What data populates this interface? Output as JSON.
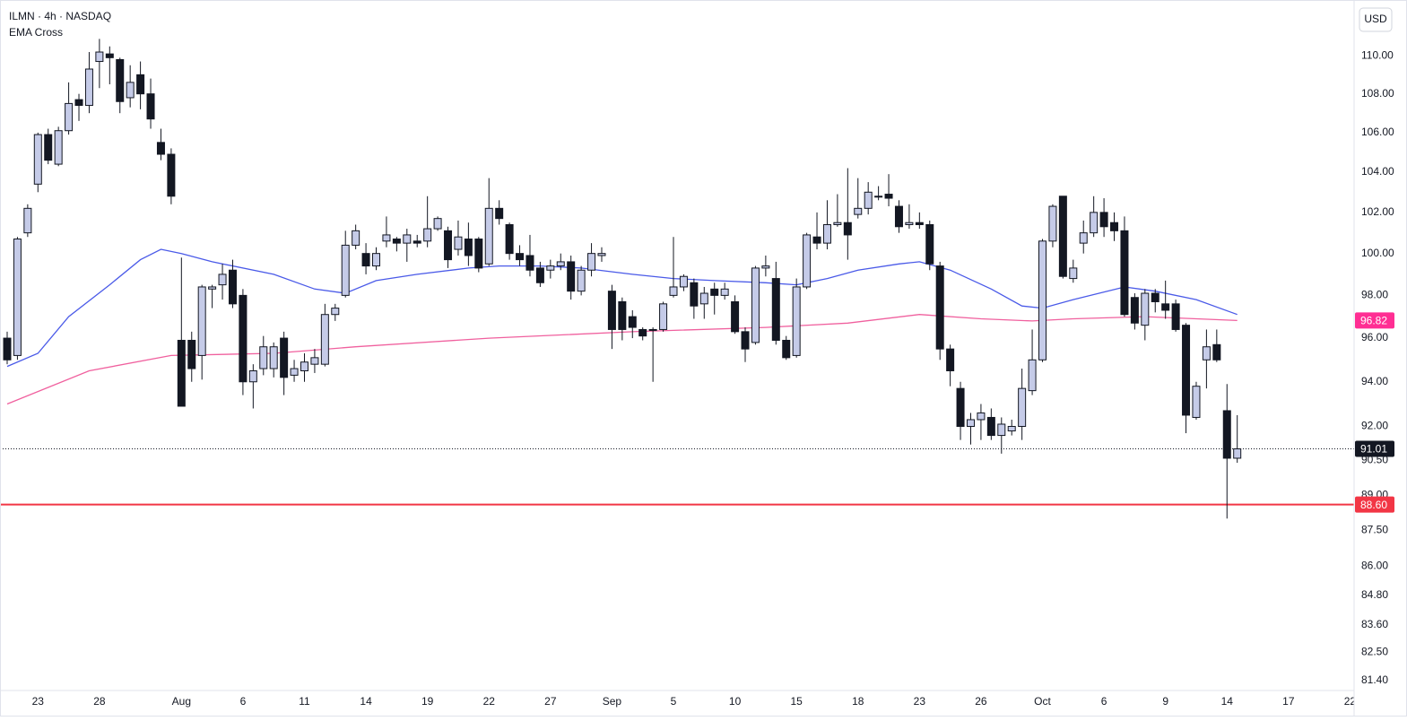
{
  "chart_data": {
    "type": "candlestick",
    "title": "ILMN · 4h · NASDAQ",
    "subtitle": "EMA Cross",
    "currency": "USD",
    "log_scale": true,
    "ylim": [
      81.0,
      113.0
    ],
    "xlim": [
      -0.7,
      131.4
    ],
    "yticks": [
      {
        "value": 110,
        "label": "110.00"
      },
      {
        "value": 108,
        "label": "108.00"
      },
      {
        "value": 106,
        "label": "106.00"
      },
      {
        "value": 104,
        "label": "104.00"
      },
      {
        "value": 102,
        "label": "102.00"
      },
      {
        "value": 100,
        "label": "100.00"
      },
      {
        "value": 98,
        "label": "98.00"
      },
      {
        "value": 96,
        "label": "96.00"
      },
      {
        "value": 94,
        "label": "94.00"
      },
      {
        "value": 92,
        "label": "92.00"
      },
      {
        "value": 90.5,
        "label": "90.50"
      },
      {
        "value": 89,
        "label": "89.00"
      },
      {
        "value": 87.5,
        "label": "87.50"
      },
      {
        "value": 86,
        "label": "86.00"
      },
      {
        "value": 84.8,
        "label": "84.80"
      },
      {
        "value": 83.6,
        "label": "83.60"
      },
      {
        "value": 82.5,
        "label": "82.50"
      },
      {
        "value": 81.4,
        "label": "81.40"
      }
    ],
    "xticks": [
      {
        "value": 3,
        "label": "23"
      },
      {
        "value": 9,
        "label": "28"
      },
      {
        "value": 17,
        "label": "Aug"
      },
      {
        "value": 23,
        "label": "6"
      },
      {
        "value": 29,
        "label": "11"
      },
      {
        "value": 35,
        "label": "14"
      },
      {
        "value": 41,
        "label": "19"
      },
      {
        "value": 47,
        "label": "22"
      },
      {
        "value": 53,
        "label": "27"
      },
      {
        "value": 59,
        "label": "Sep"
      },
      {
        "value": 65,
        "label": "5"
      },
      {
        "value": 71,
        "label": "10"
      },
      {
        "value": 77,
        "label": "15"
      },
      {
        "value": 83,
        "label": "18"
      },
      {
        "value": 89,
        "label": "23"
      },
      {
        "value": 95,
        "label": "26"
      },
      {
        "value": 101,
        "label": "Oct"
      },
      {
        "value": 107,
        "label": "6"
      },
      {
        "value": 113,
        "label": "9"
      },
      {
        "value": 119,
        "label": "14"
      },
      {
        "value": 125,
        "label": "17"
      },
      {
        "value": 131,
        "label": "22"
      }
    ],
    "up_color": "#c5cbe8",
    "down_color": "#131722",
    "open": [
      96.0,
      95.2,
      101.0,
      103.4,
      105.9,
      104.4,
      106.1,
      107.7,
      107.4,
      109.7,
      110.1,
      109.8,
      107.8,
      109.0,
      108.0,
      105.5,
      104.9,
      95.9,
      95.9,
      95.2,
      98.3,
      98.5,
      99.2,
      98.0,
      94.0,
      94.6,
      94.6,
      96.0,
      94.3,
      94.5,
      94.8,
      94.8,
      97.1,
      98.0,
      100.4,
      100.0,
      99.4,
      100.6,
      100.7,
      100.5,
      100.6,
      100.6,
      101.2,
      101.1,
      100.2,
      100.7,
      100.7,
      99.5,
      102.2,
      101.4,
      100.0,
      99.9,
      99.3,
      99.2,
      99.4,
      99.6,
      98.2,
      99.2,
      99.9,
      98.2,
      97.7,
      97.0,
      96.4,
      96.4,
      96.4,
      98.0,
      98.4,
      98.6,
      97.6,
      98.3,
      98.0,
      97.7,
      96.3,
      95.8,
      99.3,
      98.8,
      95.9,
      95.2,
      98.4,
      100.8,
      100.5,
      101.4,
      101.5,
      101.9,
      102.2,
      102.8,
      102.9,
      102.3,
      101.4,
      101.5,
      101.4,
      99.4,
      95.5,
      93.7,
      92.0,
      92.3,
      92.4,
      91.6,
      91.8,
      92.0,
      93.6,
      95.0,
      100.6,
      102.8,
      98.8,
      100.5,
      101.0,
      102.0,
      101.5,
      101.1,
      97.9,
      96.6,
      98.1,
      97.6,
      97.6,
      96.6,
      92.4,
      95.0,
      95.7,
      92.7,
      90.6
    ],
    "high": [
      96.3,
      100.8,
      102.4,
      106.0,
      106.2,
      106.3,
      108.6,
      108.0,
      110.2,
      110.9,
      110.5,
      109.9,
      109.5,
      109.7,
      108.8,
      106.2,
      105.2,
      99.8,
      96.3,
      98.5,
      98.5,
      99.5,
      99.7,
      98.3,
      94.8,
      96.1,
      95.8,
      96.3,
      95.0,
      95.3,
      95.5,
      97.6,
      97.6,
      101.1,
      101.4,
      100.5,
      100.3,
      101.8,
      100.8,
      101.2,
      100.9,
      102.8,
      101.8,
      101.3,
      101.6,
      101.5,
      100.8,
      103.7,
      102.6,
      101.5,
      100.4,
      100.9,
      99.6,
      99.7,
      100.0,
      99.9,
      99.4,
      100.5,
      100.3,
      98.5,
      97.9,
      97.3,
      96.5,
      96.5,
      97.7,
      100.8,
      99.0,
      98.8,
      98.4,
      98.6,
      98.6,
      98.0,
      96.5,
      99.4,
      99.9,
      99.6,
      96.1,
      98.8,
      101.0,
      102.0,
      102.6,
      102.9,
      104.2,
      103.7,
      103.5,
      103.3,
      103.9,
      102.6,
      102.4,
      102.0,
      101.6,
      99.6,
      95.7,
      94.0,
      92.6,
      93.0,
      92.8,
      92.4,
      92.3,
      94.6,
      96.4,
      100.7,
      102.4,
      102.8,
      99.7,
      101.6,
      102.8,
      102.7,
      102.0,
      101.8,
      98.1,
      98.3,
      98.3,
      98.7,
      97.8,
      96.7,
      94.0,
      96.4,
      96.4,
      93.9,
      92.5
    ],
    "low": [
      94.8,
      95.0,
      100.8,
      103.0,
      104.4,
      104.3,
      105.9,
      106.6,
      107.0,
      108.3,
      108.5,
      107.0,
      107.3,
      107.2,
      106.2,
      104.6,
      102.4,
      92.9,
      94.0,
      94.1,
      97.4,
      97.8,
      97.4,
      93.4,
      92.8,
      94.3,
      94.2,
      93.4,
      94.0,
      94.0,
      94.4,
      94.7,
      96.8,
      97.9,
      100.2,
      99.0,
      99.2,
      100.3,
      100.1,
      99.6,
      100.3,
      100.3,
      101.1,
      99.3,
      99.9,
      99.4,
      99.1,
      99.4,
      101.4,
      99.7,
      99.4,
      98.9,
      98.4,
      98.8,
      99.2,
      97.8,
      98.0,
      98.9,
      99.6,
      95.5,
      95.9,
      96.0,
      95.9,
      94.0,
      96.3,
      97.9,
      98.2,
      96.9,
      96.9,
      97.1,
      97.8,
      96.2,
      94.9,
      95.7,
      98.9,
      95.7,
      95.0,
      95.1,
      98.3,
      100.2,
      100.2,
      101.3,
      99.7,
      101.7,
      101.9,
      102.6,
      102.3,
      101.0,
      101.2,
      101.2,
      99.2,
      95.0,
      93.8,
      91.4,
      91.2,
      91.4,
      91.4,
      90.8,
      91.6,
      91.4,
      93.4,
      94.9,
      100.3,
      98.8,
      98.6,
      100.0,
      100.8,
      100.8,
      100.6,
      97.0,
      96.4,
      95.9,
      97.2,
      96.9,
      96.3,
      91.7,
      92.3,
      93.7,
      94.9,
      88.0,
      90.4
    ],
    "close": [
      95.0,
      100.7,
      102.2,
      105.9,
      104.6,
      106.1,
      107.5,
      107.4,
      109.3,
      110.2,
      109.9,
      107.6,
      108.6,
      108.0,
      106.7,
      104.9,
      102.8,
      92.9,
      94.6,
      98.4,
      98.4,
      99.0,
      97.6,
      94.0,
      94.5,
      95.6,
      95.6,
      94.2,
      94.6,
      94.9,
      95.1,
      97.1,
      97.4,
      100.4,
      101.1,
      99.4,
      100.0,
      100.9,
      100.5,
      100.9,
      100.5,
      101.2,
      101.7,
      99.7,
      100.8,
      99.9,
      99.3,
      102.2,
      101.7,
      100.0,
      99.7,
      99.2,
      98.6,
      99.4,
      99.6,
      98.2,
      99.2,
      100.0,
      100.0,
      96.4,
      96.4,
      96.5,
      96.1,
      96.4,
      97.6,
      98.4,
      98.9,
      97.5,
      98.1,
      98.0,
      98.3,
      96.3,
      95.5,
      99.3,
      99.4,
      95.9,
      95.1,
      98.4,
      100.9,
      100.5,
      101.4,
      101.5,
      100.9,
      102.2,
      103.0,
      102.8,
      102.7,
      101.3,
      101.5,
      101.4,
      99.5,
      95.5,
      94.5,
      92.0,
      92.3,
      92.6,
      91.6,
      92.1,
      92.0,
      93.7,
      95.0,
      100.6,
      102.3,
      98.9,
      99.3,
      101.0,
      102.0,
      101.3,
      101.1,
      97.1,
      96.7,
      98.1,
      97.7,
      97.3,
      96.4,
      92.5,
      93.8,
      95.6,
      95.0,
      90.6,
      91.01
    ],
    "series": [
      {
        "color": "#4a5ae8",
        "x": [
          0,
          3,
          6,
          10,
          13,
          15,
          17,
          20,
          26,
          30,
          33,
          36,
          40,
          45,
          48,
          52,
          56,
          61,
          65,
          69,
          74,
          77,
          80,
          83,
          87,
          89,
          92,
          96,
          99,
          101,
          104,
          109,
          112,
          116,
          120
        ],
        "values": [
          94.7,
          95.3,
          97.0,
          98.5,
          99.7,
          100.2,
          100.0,
          99.6,
          99.0,
          98.3,
          98.1,
          98.7,
          99.0,
          99.3,
          99.4,
          99.4,
          99.3,
          99.0,
          98.8,
          98.7,
          98.6,
          98.5,
          98.8,
          99.2,
          99.5,
          99.6,
          99.2,
          98.3,
          97.5,
          97.4,
          97.8,
          98.4,
          98.2,
          97.8,
          97.1
        ]
      },
      {
        "color": "#f0609e",
        "label_color": "#ff2e93",
        "x": [
          0,
          8,
          16,
          26,
          34,
          47,
          61,
          74,
          82,
          89,
          95,
          100,
          104,
          111,
          120
        ],
        "values": [
          93.0,
          94.5,
          95.2,
          95.3,
          95.6,
          96.0,
          96.3,
          96.5,
          96.7,
          97.1,
          96.9,
          96.8,
          96.9,
          97.0,
          96.82
        ],
        "value_label": "96.82"
      }
    ],
    "last_price": {
      "value": 91.01,
      "label": "91.01",
      "color": "#131722"
    },
    "level": {
      "value": 88.6,
      "label": "88.60",
      "color": "#f23645"
    }
  }
}
